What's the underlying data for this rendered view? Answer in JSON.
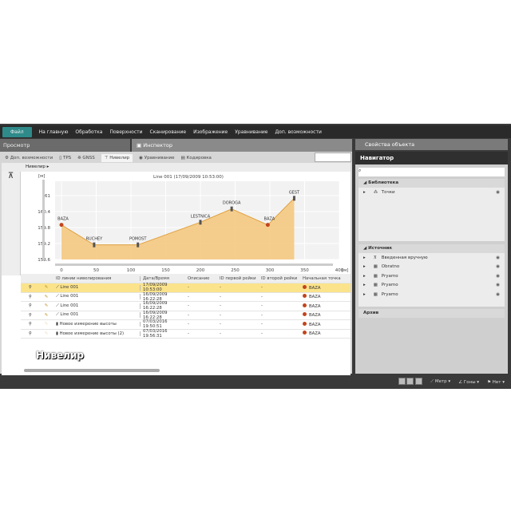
{
  "menu": {
    "file": "Файл",
    "items": [
      "На главную",
      "Обработка",
      "Поверхности",
      "Сканирование",
      "Изображение",
      "Уравнивание",
      "Доп. возможности"
    ]
  },
  "panels": {
    "view": "Просмотр",
    "inspector": "Инспектор",
    "object_props": "Свойства объекта"
  },
  "tabs": [
    {
      "label": "Доп. возможности",
      "icon": "tools-icon"
    },
    {
      "label": "TPS",
      "icon": "tps-icon"
    },
    {
      "label": "GNSS",
      "icon": "satellite-icon"
    },
    {
      "label": "Нивелир",
      "icon": "level-icon",
      "active": true
    },
    {
      "label": "Уравнивание",
      "icon": "adjust-icon"
    },
    {
      "label": "Кодировка",
      "icon": "code-icon"
    }
  ],
  "breadcrumb": "Нивелир",
  "chart_data": {
    "type": "area",
    "title": "Line 001 (17/09/2009 10:53:00)",
    "ylabel": "[м]",
    "xlabel": "[м]",
    "xlim": [
      0,
      400
    ],
    "ylim": [
      158.6,
      161.3
    ],
    "x_ticks": [
      0,
      50,
      100,
      150,
      200,
      250,
      300,
      350,
      400
    ],
    "y_ticks": [
      158.6,
      159.2,
      159.8,
      160.4,
      161
    ],
    "points": [
      {
        "x": 0,
        "y": 159.9,
        "label": "BAZA",
        "kind": "base"
      },
      {
        "x": 47,
        "y": 159.15,
        "label": "RUCHEY",
        "kind": "staff"
      },
      {
        "x": 110,
        "y": 159.15,
        "label": "POMOST",
        "kind": "staff"
      },
      {
        "x": 200,
        "y": 160.0,
        "label": "LESTNICA",
        "kind": "staff"
      },
      {
        "x": 245,
        "y": 160.5,
        "label": "DOROGA",
        "kind": "staff"
      },
      {
        "x": 297,
        "y": 159.9,
        "label": "BAZA",
        "kind": "base"
      },
      {
        "x": 335,
        "y": 160.9,
        "label": "GEST",
        "kind": "staff"
      }
    ],
    "fill": "#f5c77a",
    "line": "#e0a040"
  },
  "table": {
    "columns": [
      "ID линии нивелирования",
      "Дата/Время",
      "Описание",
      "ID первой рейки",
      "ID второй рейки",
      "Начальная точка"
    ],
    "rows": [
      {
        "id": "Line 001",
        "date": "17/09/2009 10:53:00",
        "desc": "-",
        "r1": "-",
        "r2": "-",
        "start": "BAZA",
        "selected": true
      },
      {
        "id": "Line 001",
        "date": "16/09/2009 16:22:28",
        "desc": "-",
        "r1": "-",
        "r2": "-",
        "start": "BAZA"
      },
      {
        "id": "Line 001",
        "date": "16/09/2009 16:22:28",
        "desc": "-",
        "r1": "-",
        "r2": "-",
        "start": "BAZA"
      },
      {
        "id": "Line 001",
        "date": "16/09/2009 16:22:28",
        "desc": "-",
        "r1": "-",
        "r2": "-",
        "start": "BAZA"
      },
      {
        "id": "Новое измерение высоты",
        "date": "07/03/2016 19:50:51",
        "desc": "-",
        "r1": "-",
        "r2": "-",
        "start": "BAZA"
      },
      {
        "id": "Новое измерение высоты (2)",
        "date": "07/03/2016 19:56:31",
        "desc": "-",
        "r1": "-",
        "r2": "-",
        "start": "BAZA"
      }
    ]
  },
  "overlay_label": "Нивелир",
  "navigator": {
    "title": "Навигатор",
    "library": "Библиотека",
    "library_items": [
      "Точки"
    ],
    "sources": "Источник",
    "source_items": [
      "Введенная вручную",
      "Obratno",
      "Pryamo",
      "Pryamo",
      "Pryamo"
    ],
    "archive": "Архив"
  },
  "status": {
    "units": "Метр",
    "angles": "Гоны",
    "none": "Нет"
  }
}
